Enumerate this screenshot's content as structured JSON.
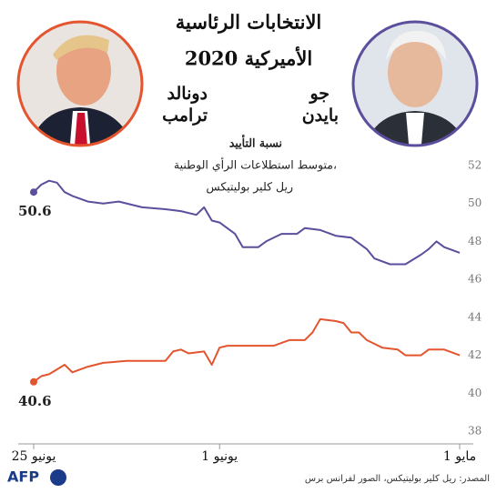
{
  "chart_data": {
    "type": "line",
    "title_lines": [
      "الانتخابات الرئاسية",
      "الأميركية 2020"
    ],
    "candidates": [
      {
        "first": "جو",
        "last": "بايدن"
      },
      {
        "first": "دونالد",
        "last": "ترامب"
      }
    ],
    "subtitle": "نسبة التأييد",
    "subtitle_lines": [
      "متوسط استطلاعات الرأي الوطنية،",
      "ريل كلير بوليتيكس"
    ],
    "source": "المصدر: ريل كلير بوليتيكس، الصور لفرانس برس",
    "logo": "AFP",
    "xlim": [
      "05-01",
      "06-25"
    ],
    "xticks": [
      {
        "value": "05-01",
        "label": "1 مايو"
      },
      {
        "value": "06-01",
        "label": "1 يونيو"
      },
      {
        "value": "06-25",
        "label": "25 يونيو"
      }
    ],
    "ylim": [
      38,
      52
    ],
    "yticks": [
      38,
      40,
      42,
      44,
      46,
      48,
      50,
      52
    ],
    "grid": false,
    "series": [
      {
        "name": "بايدن",
        "color": "#5b4e9c",
        "x": [
          "05-01",
          "05-03",
          "05-04",
          "05-05",
          "05-06",
          "05-08",
          "05-10",
          "05-12",
          "05-13",
          "05-15",
          "05-17",
          "05-19",
          "05-21",
          "05-22",
          "05-24",
          "05-26",
          "05-27",
          "05-29",
          "05-30",
          "06-01",
          "06-02",
          "06-03",
          "06-04",
          "06-06",
          "06-08",
          "06-11",
          "06-14",
          "06-16",
          "06-18",
          "06-20",
          "06-21",
          "06-22",
          "06-23",
          "06-24",
          "06-25"
        ],
        "values": [
          47.4,
          47.7,
          48.0,
          47.6,
          47.3,
          46.8,
          46.8,
          47.1,
          47.6,
          48.2,
          48.3,
          48.6,
          48.7,
          48.4,
          48.4,
          48.0,
          47.7,
          47.7,
          48.4,
          49.0,
          49.1,
          49.8,
          49.4,
          49.6,
          49.7,
          49.8,
          50.1,
          50.0,
          50.1,
          50.4,
          50.6,
          51.1,
          51.2,
          51.0,
          50.6
        ]
      },
      {
        "name": "ترامب",
        "color": "#e4552f",
        "x": [
          "05-01",
          "05-03",
          "05-05",
          "05-06",
          "05-08",
          "05-09",
          "05-11",
          "05-13",
          "05-14",
          "05-15",
          "05-16",
          "05-17",
          "05-19",
          "05-20",
          "05-21",
          "05-23",
          "05-25",
          "05-27",
          "05-31",
          "06-01",
          "06-02",
          "06-03",
          "06-05",
          "06-06",
          "06-07",
          "06-08",
          "06-13",
          "06-16",
          "06-18",
          "06-20",
          "06-21",
          "06-23",
          "06-24",
          "06-25"
        ],
        "values": [
          42.0,
          42.3,
          42.3,
          42.0,
          42.0,
          42.3,
          42.4,
          42.8,
          43.2,
          43.2,
          43.7,
          43.8,
          43.9,
          43.2,
          42.8,
          42.8,
          42.5,
          42.5,
          42.5,
          42.4,
          41.5,
          42.2,
          42.1,
          42.3,
          42.2,
          41.7,
          41.7,
          41.6,
          41.4,
          41.1,
          41.5,
          41.0,
          40.9,
          40.6
        ]
      }
    ]
  }
}
